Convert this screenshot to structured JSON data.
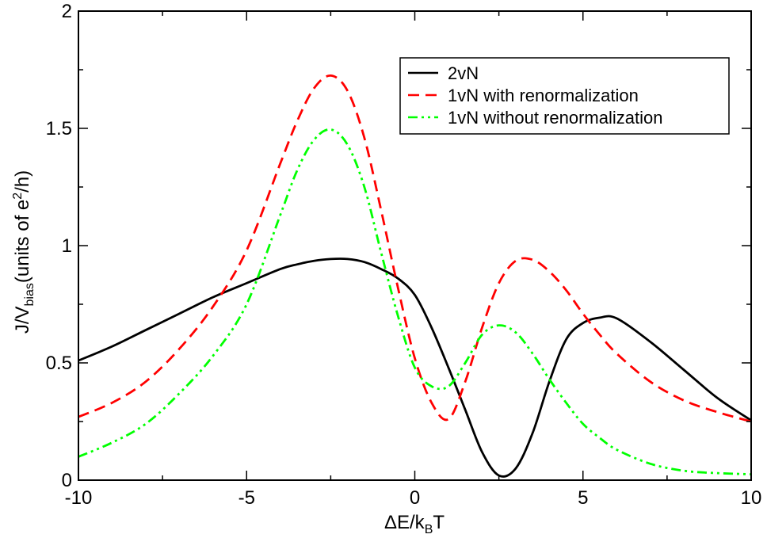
{
  "chart_data": {
    "type": "line",
    "title": "",
    "xlabel": {
      "main": "ΔE/k",
      "sub": "B",
      "tail": "T"
    },
    "ylabel": {
      "main": "J/V",
      "sub": "bias",
      "mid": "(units of e",
      "sup": "2",
      "tail": "/h)"
    },
    "xlim": [
      -10,
      10
    ],
    "ylim": [
      0,
      2
    ],
    "x_ticks": [
      -10,
      -5,
      0,
      5,
      10
    ],
    "y_ticks": [
      0,
      0.5,
      1,
      1.5,
      2
    ],
    "x_tick_labels": [
      "-10",
      "-5",
      "0",
      "5",
      "10"
    ],
    "y_tick_labels": [
      "0",
      "0.5",
      "1",
      "1.5",
      "2"
    ],
    "legend_position": "top-right",
    "x": [
      -10,
      -9,
      -8,
      -7,
      -6,
      -5,
      -4,
      -3.5,
      -3,
      -2.5,
      -2,
      -1.5,
      -1,
      -0.5,
      0,
      0.5,
      1,
      1.5,
      2,
      2.5,
      3,
      3.5,
      4,
      4.5,
      5,
      5.5,
      6,
      7,
      8,
      9,
      10
    ],
    "series": [
      {
        "name": "2vN",
        "color": "#000000",
        "dash": "solid",
        "values": [
          0.51,
          0.57,
          0.64,
          0.71,
          0.78,
          0.84,
          0.9,
          0.92,
          0.935,
          0.943,
          0.943,
          0.93,
          0.9,
          0.86,
          0.79,
          0.65,
          0.48,
          0.3,
          0.12,
          0.02,
          0.05,
          0.2,
          0.42,
          0.6,
          0.67,
          0.693,
          0.69,
          0.59,
          0.47,
          0.35,
          0.255
        ]
      },
      {
        "name": "1vN with renormalization",
        "color": "#ff0000",
        "dash": "dashed",
        "values": [
          0.27,
          0.33,
          0.42,
          0.56,
          0.74,
          0.98,
          1.35,
          1.53,
          1.67,
          1.725,
          1.66,
          1.46,
          1.15,
          0.82,
          0.52,
          0.33,
          0.26,
          0.42,
          0.65,
          0.84,
          0.935,
          0.94,
          0.89,
          0.81,
          0.71,
          0.62,
          0.54,
          0.42,
          0.34,
          0.29,
          0.25
        ]
      },
      {
        "name": "1vN without renormalization",
        "color": "#00ff00",
        "dash": "dash-dot-dot",
        "values": [
          0.1,
          0.16,
          0.24,
          0.37,
          0.53,
          0.75,
          1.13,
          1.32,
          1.45,
          1.495,
          1.43,
          1.25,
          0.97,
          0.7,
          0.48,
          0.4,
          0.4,
          0.5,
          0.62,
          0.66,
          0.63,
          0.54,
          0.43,
          0.33,
          0.24,
          0.18,
          0.13,
          0.07,
          0.04,
          0.03,
          0.025
        ]
      }
    ]
  }
}
